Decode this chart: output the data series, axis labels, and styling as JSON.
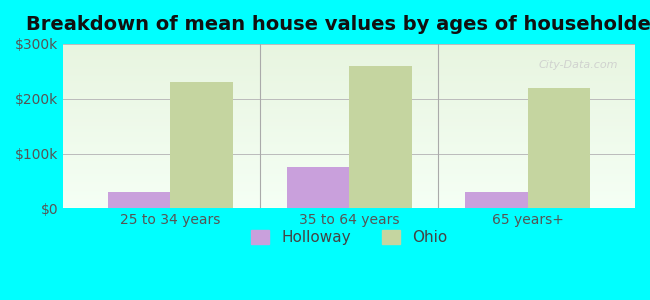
{
  "title": "Breakdown of mean house values by ages of householders",
  "categories": [
    "25 to 34 years",
    "35 to 64 years",
    "65 years+"
  ],
  "holloway_values": [
    30000,
    75000,
    30000
  ],
  "ohio_values": [
    230000,
    260000,
    220000
  ],
  "holloway_color": "#c9a0dc",
  "ohio_color": "#c5d5a0",
  "background_color": "#00ffff",
  "plot_bg_start": "#e8f5e0",
  "ylim": [
    0,
    300000
  ],
  "yticks": [
    0,
    100000,
    200000,
    300000
  ],
  "ytick_labels": [
    "$0",
    "$100k",
    "$200k",
    "$300k"
  ],
  "bar_width": 0.35,
  "legend_labels": [
    "Holloway",
    "Ohio"
  ],
  "title_fontsize": 14,
  "tick_fontsize": 10,
  "legend_fontsize": 11
}
